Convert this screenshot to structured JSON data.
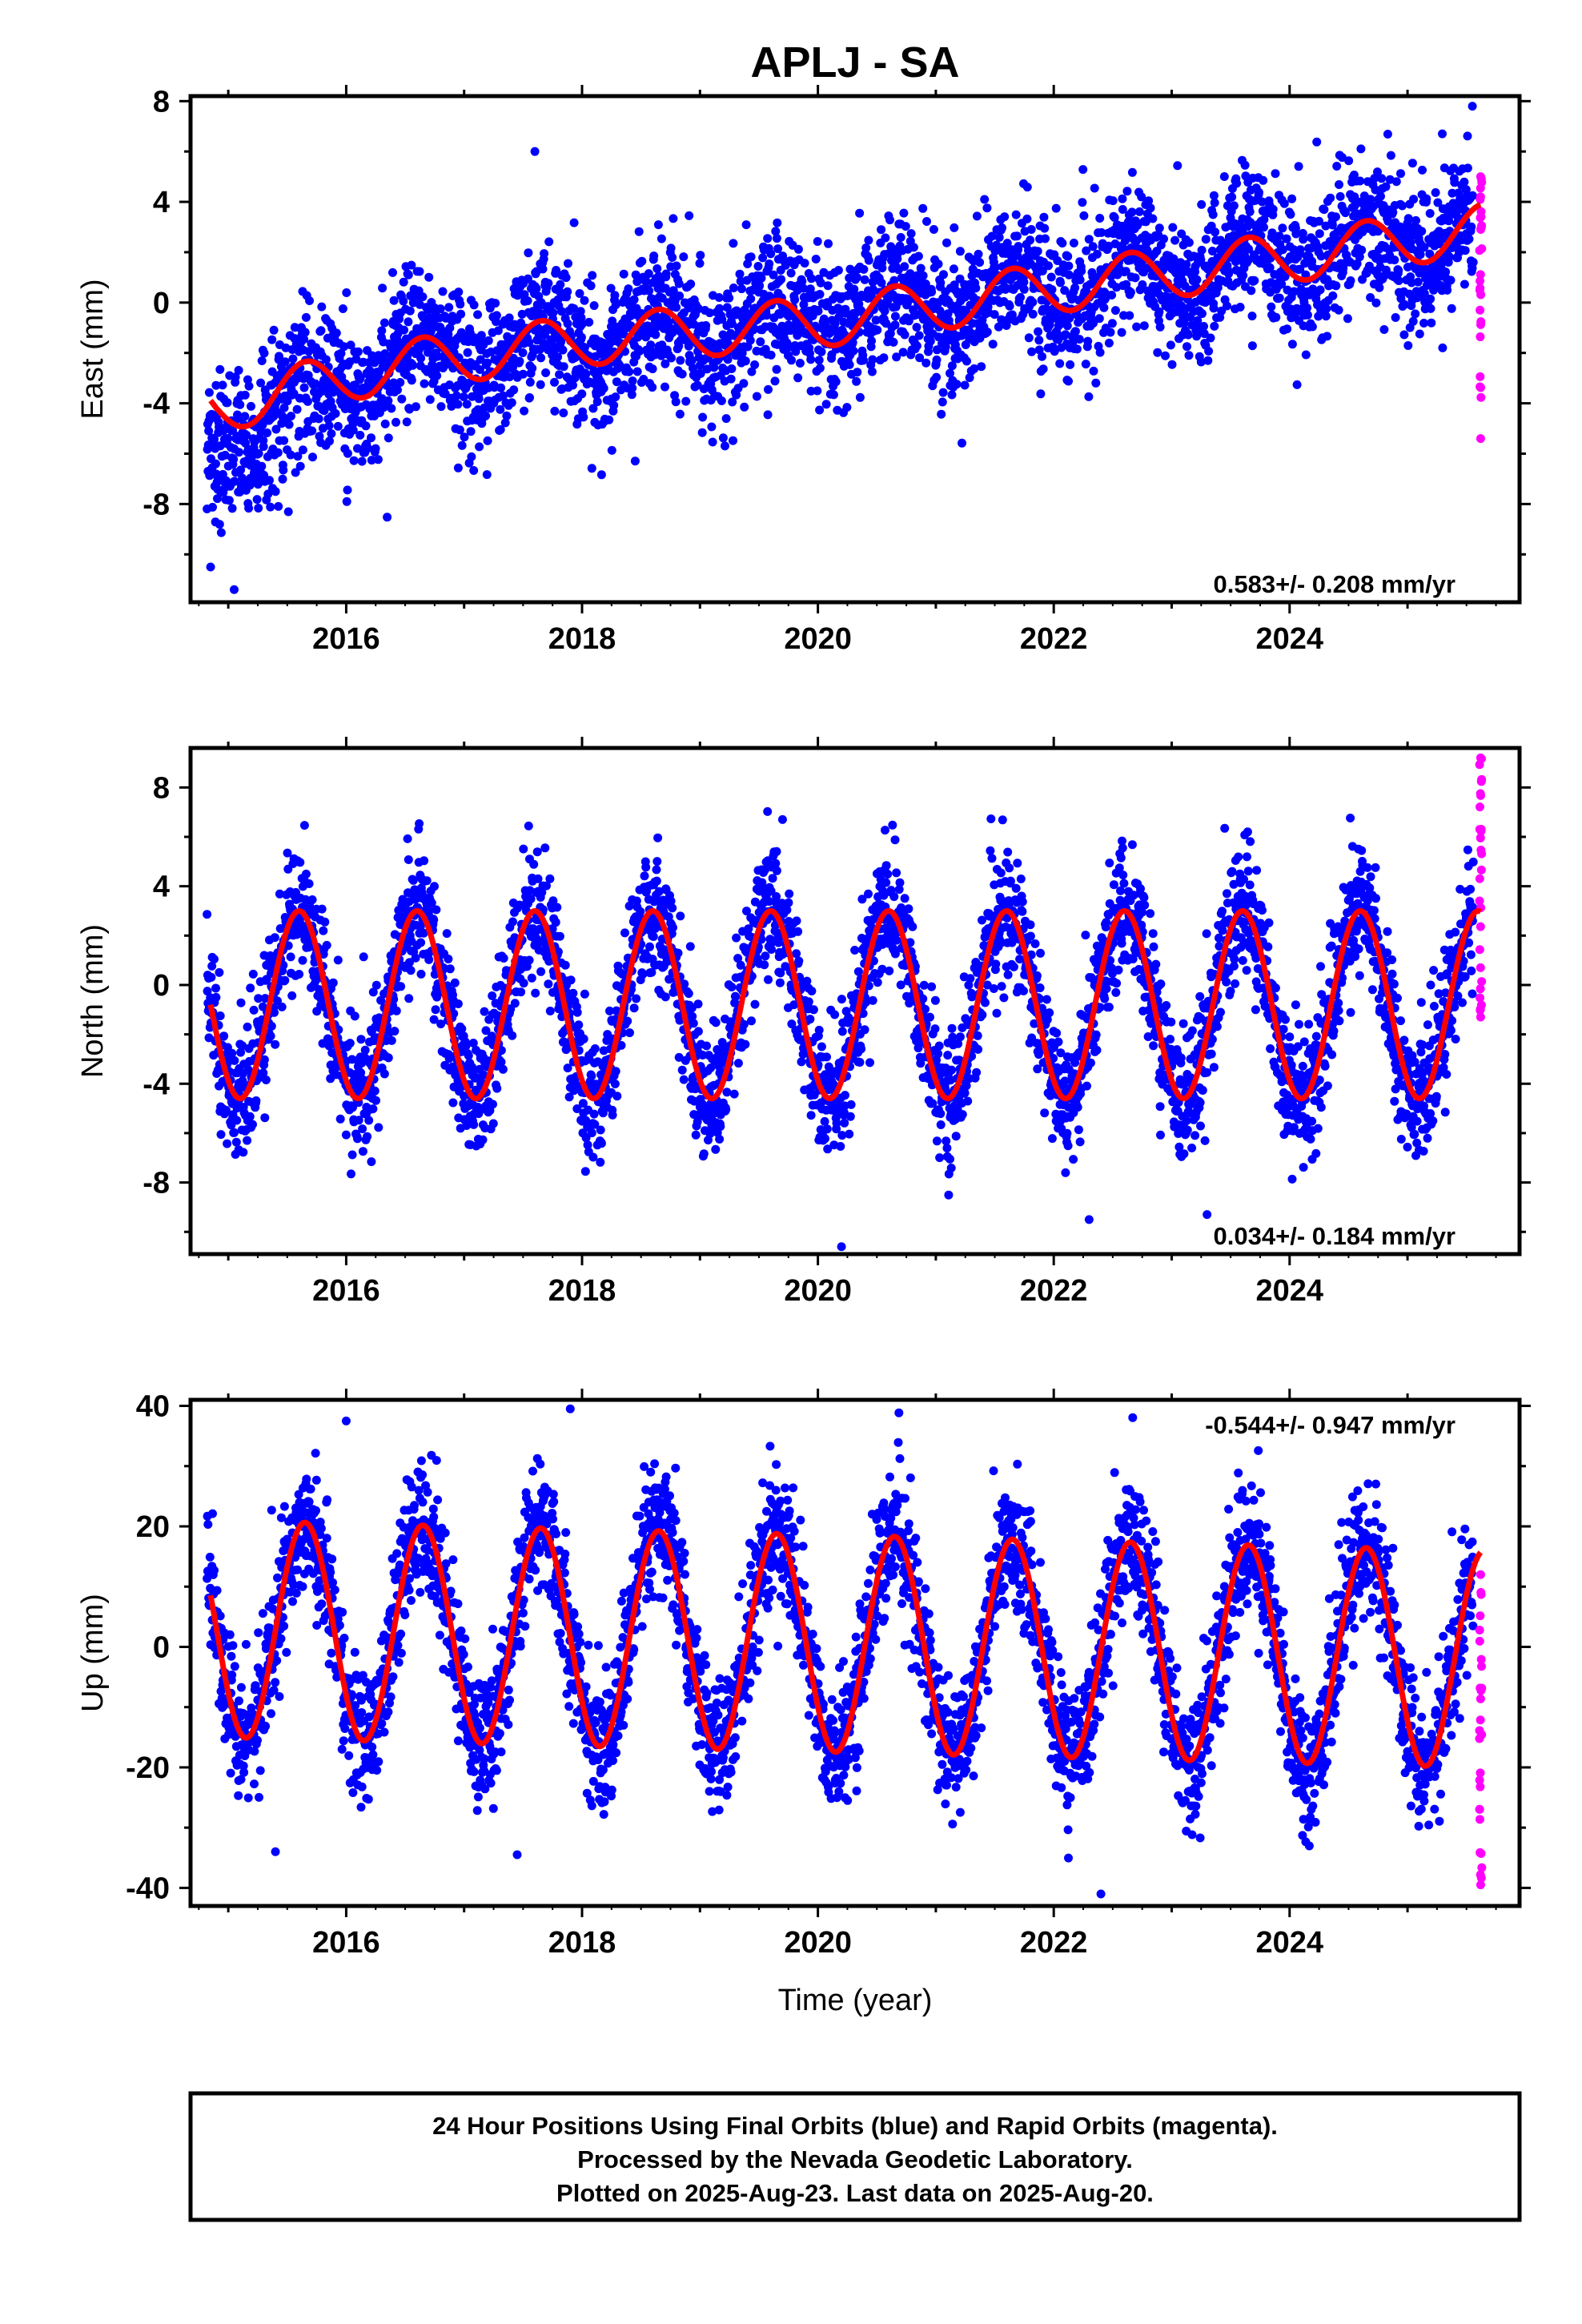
{
  "title": "APLJ - SA",
  "colors": {
    "final_orbits": "#0000ff",
    "rapid_orbits": "#ff00ff",
    "model_fit": "#ff0000"
  },
  "xlabel": "Time (year)",
  "caption": {
    "line1": "24 Hour Positions Using Final Orbits (blue) and Rapid Orbits (magenta).",
    "line2": "Processed by the Nevada Geodetic Laboratory.",
    "line3": "Plotted on 2025-Aug-23. Last data on 2025-Aug-20."
  },
  "chart_data": [
    {
      "type": "scatter",
      "component": "east",
      "ylabel": "East (mm)",
      "rate_label": "0.583+/- 0.208 mm/yr",
      "xlim": [
        2014.68,
        2025.95
      ],
      "ylim": [
        -11.9,
        8.2
      ],
      "x_ticks": [
        "2016",
        "2018",
        "2020",
        "2022",
        "2024"
      ],
      "y_ticks": [
        "8",
        "4",
        "0",
        "-4",
        "-8"
      ],
      "x_tick_values": [
        2016,
        2018,
        2020,
        2022,
        2024
      ],
      "y_tick_values": [
        8,
        4,
        0,
        -4,
        -8
      ],
      "grid": false,
      "model": {
        "trend": [
          [
            2014.9,
            -4.2
          ],
          [
            2016.3,
            -2.6
          ],
          [
            2018.0,
            -1.5
          ],
          [
            2020.0,
            -0.8
          ],
          [
            2022.0,
            0.6
          ],
          [
            2024.0,
            1.8
          ],
          [
            2025.6,
            2.9
          ]
        ],
        "seasonal_amplitude": 1.0,
        "seasonal_phase_year": 2015.65
      },
      "scatter_noise": 1.4,
      "rapid_y_range": [
        -5.4,
        5.0
      ],
      "outliers": [
        [
          2025.55,
          7.8
        ],
        [
          2017.6,
          6.0
        ],
        [
          2014.85,
          -10.5
        ],
        [
          2015.05,
          -11.4
        ]
      ]
    },
    {
      "type": "scatter",
      "component": "north",
      "ylabel": "North (mm)",
      "rate_label": "0.034+/- 0.184 mm/yr",
      "xlim": [
        2014.68,
        2025.95
      ],
      "ylim": [
        -10.9,
        9.6
      ],
      "x_ticks": [
        "2016",
        "2018",
        "2020",
        "2022",
        "2024"
      ],
      "y_ticks": [
        "8",
        "4",
        "0",
        "-4",
        "-8"
      ],
      "x_tick_values": [
        2016,
        2018,
        2020,
        2022,
        2024
      ],
      "y_tick_values": [
        8,
        4,
        0,
        -4,
        -8
      ],
      "grid": false,
      "model": {
        "trend": [
          [
            2014.9,
            -0.8
          ],
          [
            2025.6,
            -0.8
          ]
        ],
        "seasonal_amplitude": 3.8,
        "seasonal_phase_year": 2015.6
      },
      "scatter_noise": 1.3,
      "rapid_y_range": [
        -1.3,
        9.2
      ],
      "outliers": [
        [
          2019.7,
          6.7
        ],
        [
          2020.2,
          -10.6
        ],
        [
          2023.3,
          -9.3
        ],
        [
          2022.3,
          -9.5
        ]
      ]
    },
    {
      "type": "scatter",
      "component": "up",
      "ylabel": "Up (mm)",
      "rate_label": "-0.544+/- 0.947 mm/yr",
      "xlim": [
        2014.68,
        2025.95
      ],
      "ylim": [
        -43.0,
        41.0
      ],
      "x_ticks": [
        "2016",
        "2018",
        "2020",
        "2022",
        "2024"
      ],
      "y_ticks": [
        "40",
        "20",
        "0",
        "-20",
        "-40"
      ],
      "x_tick_values": [
        2016,
        2018,
        2020,
        2022,
        2024
      ],
      "y_tick_values": [
        40,
        20,
        0,
        -20,
        -40
      ],
      "grid": false,
      "model": {
        "trend": [
          [
            2014.9,
            3.0
          ],
          [
            2025.6,
            -2.0
          ]
        ],
        "seasonal_amplitude": 18.0,
        "seasonal_phase_year": 2014.65
      },
      "scatter_noise": 5.5,
      "rapid_y_range": [
        -39.5,
        12.0
      ],
      "outliers": [
        [
          2017.9,
          39.5
        ],
        [
          2016.0,
          37.5
        ],
        [
          2022.4,
          -41.0
        ],
        [
          2015.4,
          -34.0
        ],
        [
          2017.45,
          -34.5
        ]
      ]
    }
  ]
}
